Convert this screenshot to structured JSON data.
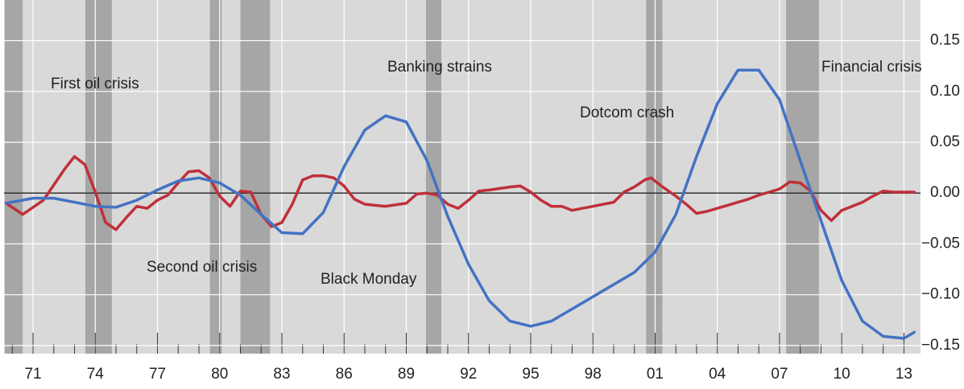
{
  "chart_data": {
    "type": "line",
    "annotations": [
      "First oil crisis",
      "Second oil crisis",
      "Black Monday",
      "Banking strains",
      "Dotcom crash",
      "Financial crisis"
    ],
    "shaded_periods": [
      [
        1969.64,
        1970.5
      ],
      [
        1973.52,
        1974.8
      ],
      [
        1979.53,
        1980.1
      ],
      [
        1981.0,
        1982.43
      ],
      [
        1989.95,
        1990.69
      ],
      [
        2000.57,
        2001.35
      ],
      [
        2007.32,
        2008.9
      ]
    ],
    "xlim": [
      1969.6,
      2013.8
    ],
    "xticks": [
      {
        "value": 1971,
        "label": "71"
      },
      {
        "value": 1974,
        "label": "74"
      },
      {
        "value": 1977,
        "label": "77"
      },
      {
        "value": 1980,
        "label": "80"
      },
      {
        "value": 1983,
        "label": "83"
      },
      {
        "value": 1986,
        "label": "86"
      },
      {
        "value": 1989,
        "label": "89"
      },
      {
        "value": 1992,
        "label": "92"
      },
      {
        "value": 1995,
        "label": "95"
      },
      {
        "value": 1998,
        "label": "98"
      },
      {
        "value": 2001,
        "label": "01"
      },
      {
        "value": 2004,
        "label": "04"
      },
      {
        "value": 2007,
        "label": "07"
      },
      {
        "value": 2010,
        "label": "10"
      },
      {
        "value": 2013,
        "label": "13"
      }
    ],
    "minor_xticks": [
      1970,
      1972,
      1973,
      1975,
      1976,
      1978,
      1979,
      1981,
      1982,
      1984,
      1985,
      1987,
      1988,
      1990,
      1991,
      1993,
      1994,
      1996,
      1997,
      1999,
      2000,
      2002,
      2003,
      2005,
      2006,
      2008,
      2009,
      2011,
      2012
    ],
    "ylim": [
      -0.158,
      0.19
    ],
    "yticks": [
      0.15,
      {
        "value": 0.1,
        "label": "0.10"
      },
      0.05,
      {
        "value": 0,
        "label": "0.00"
      },
      {
        "value": -0.05,
        "label": "−0.05"
      },
      {
        "value": -0.1,
        "label": "−0.10"
      },
      {
        "value": -0.15,
        "label": "−0.15"
      }
    ],
    "series": [
      {
        "color": "#c0303a",
        "x": [
          1969.7,
          1970.5,
          1971.5,
          1972.5,
          1973,
          1973.5,
          1974,
          1974.5,
          1975,
          1975.5,
          1976,
          1976.5,
          1977,
          1977.5,
          1978,
          1978.5,
          1979,
          1979.5,
          1980,
          1980.5,
          1981,
          1981.5,
          1982,
          1982.5,
          1983,
          1983.5,
          1984,
          1984.5,
          1985,
          1985.5,
          1986,
          1986.5,
          1987,
          1988,
          1989,
          1989.5,
          1990,
          1990.5,
          1991,
          1991.5,
          1992,
          1992.5,
          1993,
          1994,
          1994.5,
          1995,
          1995.5,
          1996,
          1996.5,
          1997,
          1997.5,
          1998,
          1999,
          1999.5,
          2000,
          2000.5,
          2000.8,
          2001.3,
          2002,
          2002.5,
          2003,
          2003.5,
          2004,
          2004.5,
          2005,
          2005.5,
          2006,
          2006.5,
          2007,
          2007.5,
          2008,
          2008.5,
          2009,
          2009.5,
          2010,
          2010.5,
          2011,
          2011.5,
          2012,
          2012.5,
          2013,
          2013.5
        ],
        "values": [
          -0.01,
          -0.021,
          -0.007,
          0.023,
          0.036,
          0.028,
          0.001,
          -0.029,
          -0.036,
          -0.024,
          -0.013,
          -0.015,
          -0.007,
          -0.002,
          0.01,
          0.021,
          0.022,
          0.015,
          -0.003,
          -0.013,
          0.002,
          0.001,
          -0.021,
          -0.033,
          -0.029,
          -0.011,
          0.013,
          0.017,
          0.017,
          0.015,
          0.007,
          -0.006,
          -0.011,
          -0.013,
          -0.01,
          -0.001,
          0.0,
          -0.002,
          -0.011,
          -0.015,
          -0.007,
          0.002,
          0.003,
          0.006,
          0.007,
          0.001,
          -0.007,
          -0.013,
          -0.013,
          -0.017,
          -0.015,
          -0.013,
          -0.009,
          0.001,
          0.006,
          0.013,
          0.015,
          0.007,
          -0.003,
          -0.011,
          -0.02,
          -0.018,
          -0.015,
          -0.012,
          -0.009,
          -0.006,
          -0.002,
          0.001,
          0.004,
          0.011,
          0.01,
          0.002,
          -0.017,
          -0.027,
          -0.017,
          -0.013,
          -0.009,
          -0.003,
          0.002,
          0.001,
          0.001,
          0.001
        ]
      },
      {
        "color": "#4472c4",
        "x": [
          1969.7,
          1971,
          1972,
          1973,
          1974,
          1975,
          1976,
          1977,
          1978,
          1979,
          1980,
          1981,
          1982,
          1983,
          1984,
          1985,
          1986,
          1987,
          1988,
          1989,
          1990,
          1991,
          1992,
          1993,
          1994,
          1995,
          1996,
          1997,
          1998,
          1999,
          2000,
          2001,
          2002,
          2003,
          2004,
          2005,
          2006,
          2007,
          2008,
          2009,
          2010,
          2011,
          2012,
          2013,
          2013.5
        ],
        "values": [
          -0.01,
          -0.005,
          -0.005,
          -0.009,
          -0.013,
          -0.014,
          -0.007,
          0.003,
          0.012,
          0.015,
          0.01,
          -0.002,
          -0.021,
          -0.039,
          -0.04,
          -0.019,
          0.026,
          0.062,
          0.076,
          0.07,
          0.032,
          -0.023,
          -0.07,
          -0.106,
          -0.126,
          -0.131,
          -0.126,
          -0.114,
          -0.102,
          -0.09,
          -0.078,
          -0.058,
          -0.021,
          0.036,
          0.088,
          0.121,
          0.121,
          0.092,
          0.032,
          -0.027,
          -0.086,
          -0.126,
          -0.141,
          -0.143,
          -0.137
        ]
      }
    ]
  }
}
